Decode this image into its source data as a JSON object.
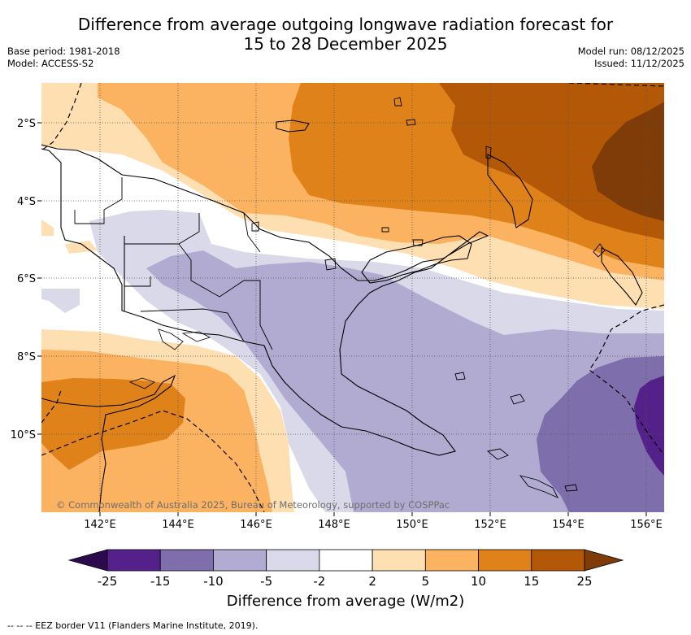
{
  "title_line1": "Difference from average outgoing longwave radiation forecast for",
  "title_line2": "15 to 28 December 2025",
  "meta_left": {
    "base_period": "Base period: 1981-2018",
    "model": "Model: ACCESS-S2"
  },
  "meta_right": {
    "model_run": "Model run: 08/12/2025",
    "issued": "Issued: 11/12/2025"
  },
  "lat_labels": [
    "2°S",
    "4°S",
    "6°S",
    "8°S",
    "10°S"
  ],
  "lon_labels": [
    "142°E",
    "144°E",
    "146°E",
    "148°E",
    "150°E",
    "152°E",
    "154°E",
    "156°E"
  ],
  "copyright": "© Commonwealth of Australia 2025, Bureau of Meteorology, supported by COSPPac",
  "colorbar": {
    "ticks": [
      "-25",
      "-15",
      "-10",
      "-5",
      "-2",
      "2",
      "5",
      "10",
      "15",
      "25"
    ],
    "colors": [
      "#2d0a4e",
      "#54218a",
      "#7e6eab",
      "#b1abd2",
      "#d9d9ea",
      "#ffffff",
      "#fedfb1",
      "#fbb361",
      "#e0821a",
      "#b35806",
      "#7f3b08"
    ],
    "title": "Difference from average (W/m2)"
  },
  "footer": "--  --  -- EEZ border V11 (Flanders Marine Institute, 2019)."
}
